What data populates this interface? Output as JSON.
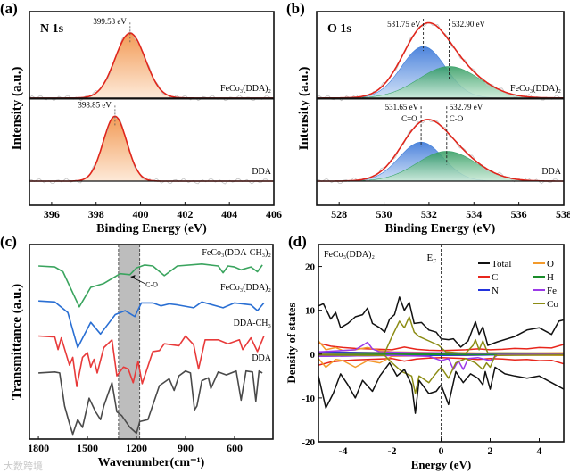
{
  "chart_data": [
    {
      "panel_label": "(a)",
      "type": "line",
      "title": "N 1s",
      "xlabel": "Binding Energy (eV)",
      "ylabel": "Intensity (a.u.)",
      "xlim": [
        395,
        406
      ],
      "ylim": [
        -0.29,
        2.04
      ],
      "xticks": [
        396,
        398,
        400,
        402,
        404,
        406
      ],
      "series": [
        {
          "name": "FeCo3(DDA)2",
          "label": "FeCo₃(DDA)₂",
          "offset": 1.0,
          "peaks": [
            {
              "center": 399.53,
              "height": 0.78,
              "fwhm": 1.6,
              "color": "#f5a266"
            }
          ],
          "annotation": "399.53 eV"
        },
        {
          "name": "DDA",
          "label": "DDA",
          "offset": 0.0,
          "peaks": [
            {
              "center": 398.85,
              "height": 0.78,
              "fwhm": 1.25,
              "color": "#f5a266"
            }
          ],
          "annotation": "398.85 eV"
        }
      ],
      "envelope_color": "#e0261c"
    },
    {
      "panel_label": "(b)",
      "type": "line",
      "title": "O 1s",
      "xlabel": "Binding Energy (eV)",
      "ylabel": "Intensity (a.u.)",
      "xlim": [
        527,
        538
      ],
      "ylim": [
        -0.29,
        2.04
      ],
      "xticks": [
        528,
        530,
        532,
        534,
        536,
        538
      ],
      "series": [
        {
          "name": "FeCo3(DDA)2",
          "label": "FeCo₃(DDA)₂",
          "offset": 1.0,
          "peaks": [
            {
              "center": 531.75,
              "height": 0.62,
              "fwhm": 2.3,
              "color": "#3f7fd9",
              "annotation": "531.75 eV"
            },
            {
              "center": 532.9,
              "height": 0.38,
              "fwhm": 3.2,
              "color": "#3aa46a",
              "annotation": "532.90 eV"
            }
          ]
        },
        {
          "name": "DDA",
          "label": "DDA",
          "offset": 0.0,
          "peaks": [
            {
              "center": 531.65,
              "height": 0.47,
              "fwhm": 2.3,
              "color": "#3f7fd9",
              "annotation": "531.65 eV",
              "bond": "C=O"
            },
            {
              "center": 532.79,
              "height": 0.36,
              "fwhm": 3.1,
              "color": "#3aa46a",
              "annotation": "532.79 eV",
              "bond": "C-O"
            }
          ]
        }
      ],
      "envelope_color": "#e0261c"
    },
    {
      "panel_label": "(c)",
      "type": "line",
      "xlabel": "Wavenumber(cm⁻¹)",
      "ylabel": "Transmittance (a.u.)",
      "xlim": [
        1855,
        365
      ],
      "ylim": [
        0,
        10
      ],
      "xticks": [
        1800,
        1500,
        1200,
        900,
        600
      ],
      "highlight_band": [
        1310,
        1180
      ],
      "annotation": "C-O",
      "series": [
        {
          "name": "FeCo3(DDA-CH3)2",
          "label": "FeCo₃(DDA-CH₃)₂",
          "color": "#3aa45e",
          "x": [
            1800,
            1700,
            1650,
            1600,
            1550,
            1480,
            1400,
            1300,
            1240,
            1200,
            1150,
            1100,
            1030,
            950,
            800,
            700,
            670,
            640,
            600,
            560,
            500,
            460,
            430
          ],
          "y": [
            8.9,
            8.85,
            8.6,
            7.7,
            6.8,
            7.8,
            8.0,
            8.5,
            8.45,
            8.8,
            8.95,
            8.9,
            8.4,
            8.9,
            9.0,
            8.9,
            8.55,
            8.9,
            8.85,
            8.7,
            8.85,
            8.6,
            8.95
          ]
        },
        {
          "name": "FeCo3(DDA)2",
          "label": "FeCo₃(DDA)₂",
          "color": "#2a6fd3",
          "x": [
            1800,
            1700,
            1620,
            1560,
            1480,
            1420,
            1330,
            1270,
            1210,
            1170,
            1100,
            1050,
            1000,
            950,
            850,
            800,
            670,
            600,
            500,
            460,
            420
          ],
          "y": [
            7.1,
            7.05,
            6.5,
            4.7,
            6.0,
            5.4,
            6.4,
            6.6,
            6.3,
            7.0,
            7.0,
            6.85,
            6.95,
            6.9,
            6.75,
            7.05,
            6.75,
            7.0,
            6.9,
            6.6,
            7.0
          ]
        },
        {
          "name": "DDA-CH3",
          "label": "DDA-CH₃",
          "color": "#e83a3a",
          "x": [
            1800,
            1700,
            1680,
            1660,
            1610,
            1590,
            1565,
            1530,
            1500,
            1480,
            1460,
            1440,
            1400,
            1350,
            1320,
            1280,
            1250,
            1220,
            1190,
            1165,
            1100,
            1060,
            1030,
            940,
            900,
            850,
            820,
            780,
            700,
            640,
            570,
            550,
            500,
            460,
            420
          ],
          "y": [
            5.3,
            5.25,
            4.6,
            5.2,
            3.8,
            4.2,
            2.7,
            4.2,
            4.45,
            3.7,
            4.1,
            3.4,
            4.7,
            5.1,
            3.25,
            3.7,
            3.6,
            2.9,
            4.0,
            2.85,
            4.5,
            4.55,
            4.9,
            4.8,
            5.3,
            4.85,
            3.6,
            5.1,
            5.1,
            4.9,
            5.1,
            4.6,
            5.2,
            4.5,
            5.3
          ]
        },
        {
          "name": "DDA",
          "label": "DDA",
          "color": "#4a4a4a",
          "x": [
            1800,
            1700,
            1670,
            1640,
            1610,
            1590,
            1560,
            1530,
            1490,
            1450,
            1420,
            1400,
            1350,
            1320,
            1290,
            1240,
            1200,
            1180,
            1130,
            1060,
            1000,
            970,
            940,
            900,
            870,
            845,
            830,
            800,
            760,
            745,
            700,
            650,
            590,
            560,
            530,
            490,
            470,
            450,
            430
          ],
          "y": [
            3.4,
            3.45,
            3.4,
            1.7,
            0.8,
            0.25,
            1.0,
            0.6,
            2.1,
            1.4,
            1.0,
            1.7,
            2.9,
            1.4,
            1.2,
            0.6,
            0.3,
            0.9,
            1.0,
            2.75,
            3.1,
            2.5,
            3.25,
            3.5,
            3.4,
            1.5,
            1.7,
            3.0,
            3.15,
            2.6,
            3.45,
            3.3,
            3.5,
            2.0,
            3.5,
            3.45,
            1.95,
            3.5,
            3.4
          ]
        }
      ]
    },
    {
      "panel_label": "(d)",
      "type": "line",
      "title": "FeCo₃(DDA)₂",
      "xlabel": "Energy (eV)",
      "ylabel": "Density of states",
      "xlim": [
        -5,
        5
      ],
      "ylim": [
        -20,
        25
      ],
      "xticks": [
        -4,
        -2,
        0,
        2,
        4
      ],
      "yticks": [
        -20,
        -10,
        0,
        10,
        20
      ],
      "fermi_label": "E",
      "fermi_sub": "F",
      "legend_position": "top-right",
      "series": [
        {
          "name": "Total",
          "color": "#111111",
          "up": {
            "x": [
              -5,
              -4.8,
              -4.5,
              -4.3,
              -4.1,
              -3.8,
              -3.5,
              -3.2,
              -3,
              -2.8,
              -2.5,
              -2.3,
              -2.1,
              -1.9,
              -1.7,
              -1.5,
              -1.3,
              -1.1,
              -0.8,
              -0.5,
              -0.2,
              0,
              0.3,
              0.5,
              0.8,
              1.1,
              1.4,
              1.55,
              1.7,
              1.9,
              2.3,
              3,
              3.5,
              4,
              4.5,
              4.8,
              5
            ],
            "y": [
              11,
              11.5,
              8,
              9.5,
              6,
              7,
              8.5,
              9,
              10.5,
              7,
              6,
              5,
              8,
              9,
              13,
              10,
              11.8,
              7,
              7.2,
              5.5,
              5,
              3.5,
              3.3,
              3.5,
              1.6,
              3,
              7.4,
              4.5,
              6.2,
              2,
              2.8,
              4,
              5.5,
              6,
              4.5,
              7.5,
              7.8
            ]
          },
          "down": {
            "x": [
              -5,
              -4.7,
              -4.4,
              -4.1,
              -3.8,
              -3.5,
              -3.2,
              -2.8,
              -2.5,
              -2.1,
              -1.8,
              -1.5,
              -1.2,
              -1.05,
              -0.9,
              -0.5,
              -0.2,
              0,
              0.3,
              0.6,
              0.9,
              1.2,
              1.5,
              1.7,
              1.8,
              2,
              2.2,
              2.6,
              3,
              3.5,
              4,
              4.5,
              5
            ],
            "y": [
              -5,
              -12.3,
              -9,
              -4.5,
              -7,
              -10,
              -6,
              -8.5,
              -5,
              -2,
              -5,
              -3.5,
              -7,
              -13.5,
              -6,
              -9,
              -8.5,
              -7,
              -11.5,
              -4,
              -6.5,
              -4.5,
              -5.5,
              -7,
              -4,
              -8,
              -3,
              -4.5,
              -5,
              -5.5,
              -5,
              -6.5,
              -8
            ]
          }
        },
        {
          "name": "C",
          "color": "#e8261c",
          "up": {
            "x": [
              -5,
              -4.5,
              -4,
              -3.5,
              -3,
              -2.5,
              -2,
              -1.5,
              -1,
              -0.5,
              0,
              0.5,
              1,
              1.5,
              2,
              2.5,
              3,
              3.5,
              4,
              4.5,
              5
            ],
            "y": [
              2.5,
              1.8,
              1.5,
              1.3,
              1.2,
              1.1,
              1,
              1.6,
              1.1,
              0.9,
              0.8,
              0.9,
              1,
              1.2,
              1,
              1.1,
              1.3,
              1.2,
              1.5,
              1.4,
              2.2
            ]
          },
          "down": {
            "x": [
              -5,
              -4.5,
              -4,
              -3.5,
              -3,
              -2.5,
              -2,
              -1.5,
              -1,
              -0.5,
              0,
              0.5,
              1,
              1.5,
              2,
              2.5,
              3,
              3.5,
              4,
              4.5,
              5
            ],
            "y": [
              -2.5,
              -1.8,
              -1.5,
              -1.3,
              -1.2,
              -1.1,
              -1,
              -1.6,
              -1.1,
              -0.9,
              -0.8,
              -0.9,
              -1,
              -1.2,
              -1,
              -1.1,
              -1.3,
              -1.2,
              -1.5,
              -1.4,
              -2.2
            ]
          }
        },
        {
          "name": "N",
          "color": "#2233dd",
          "up": {
            "x": [
              -5,
              -2,
              0,
              2,
              5
            ],
            "y": [
              0.5,
              0.3,
              0.2,
              0.2,
              0.1
            ]
          },
          "down": {
            "x": [
              -5,
              -2,
              0,
              2,
              5
            ],
            "y": [
              -0.5,
              -0.3,
              -0.3,
              -0.2,
              -0.1
            ]
          }
        },
        {
          "name": "O",
          "color": "#f39a2b",
          "up": {
            "x": [
              -5,
              -4.7,
              -4.3,
              -4,
              -3.5,
              -3,
              -2.5,
              -2,
              -1,
              0,
              1,
              2,
              3,
              5
            ],
            "y": [
              3,
              1,
              1.5,
              0.8,
              1,
              1.5,
              0.8,
              0.5,
              0.4,
              0.3,
              0.3,
              0.2,
              0.2,
              0.3
            ]
          },
          "down": {
            "x": [
              -5,
              -4.7,
              -4.3,
              -4,
              -3.5,
              -3,
              -2.5,
              -2,
              -1,
              0,
              1,
              2,
              3,
              5
            ],
            "y": [
              -1,
              -3,
              -1.2,
              -1.5,
              -3,
              -1.5,
              -2,
              -0.5,
              -0.4,
              -0.3,
              -0.3,
              -0.2,
              -0.2,
              -0.3
            ]
          }
        },
        {
          "name": "H",
          "color": "#1a8c2a",
          "up": {
            "x": [
              -5,
              0,
              5
            ],
            "y": [
              0.2,
              0.1,
              0.1
            ]
          },
          "down": {
            "x": [
              -5,
              0,
              5
            ],
            "y": [
              -0.2,
              -0.1,
              -0.1
            ]
          }
        },
        {
          "name": "Fe",
          "color": "#9b3ae8",
          "up": {
            "x": [
              -5,
              -3.5,
              -3.2,
              -3,
              -2.8,
              -2.5,
              -1,
              0,
              1,
              2,
              5
            ],
            "y": [
              0.5,
              1,
              2,
              2.7,
              1.2,
              0.5,
              0.3,
              0.3,
              0.2,
              0.2,
              0.1
            ]
          },
          "down": {
            "x": [
              -5,
              -2,
              -0.5,
              0,
              0.3,
              0.5,
              0.7,
              0.9,
              1.1,
              1.5,
              2,
              2.3,
              5
            ],
            "y": [
              -0.5,
              -0.3,
              -0.5,
              -1.5,
              -1,
              -3.5,
              -1.5,
              -3.5,
              -1,
              -0.8,
              -1.5,
              -0.2,
              -0.1
            ]
          }
        },
        {
          "name": "Co",
          "color": "#8c8c14",
          "up": {
            "x": [
              -5,
              -2.3,
              -2,
              -1.7,
              -1.5,
              -1.3,
              -1.1,
              -0.9,
              -0.5,
              -0.1,
              0.2,
              1,
              1.3,
              1.4,
              1.55,
              1.7,
              1.9,
              5
            ],
            "y": [
              0.2,
              0.3,
              4,
              7.5,
              6,
              8.5,
              5,
              4,
              3,
              2,
              0.5,
              0.2,
              2,
              3.3,
              1,
              3,
              0.3,
              0.2
            ]
          },
          "down": {
            "x": [
              -5,
              -2.3,
              -2,
              -1.6,
              -1.2,
              -1.05,
              -0.9,
              -0.5,
              -0.3,
              0,
              0.3,
              0.6,
              1,
              1.4,
              1.7,
              1.85,
              2,
              2.2,
              5
            ],
            "y": [
              -0.2,
              -0.3,
              -2,
              -4,
              -5,
              -9,
              -5,
              -6.5,
              -5,
              -3,
              -5.5,
              -2,
              -1,
              -2,
              -3.5,
              -2,
              -3,
              -0.3,
              -0.2
            ]
          }
        }
      ]
    }
  ],
  "watermark": "大数跨境"
}
